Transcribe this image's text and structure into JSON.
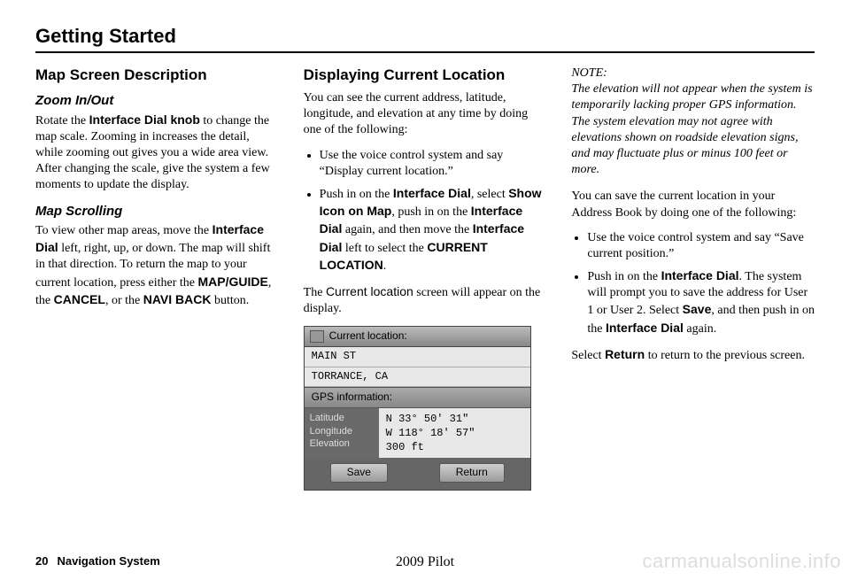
{
  "page": {
    "title": "Getting Started",
    "number": "20",
    "system": "Navigation System",
    "model": "2009  Pilot",
    "watermark": "carmanualsonline.info"
  },
  "col1": {
    "h2": "Map Screen Description",
    "zoom": {
      "h3": "Zoom In/Out",
      "p1a": "Rotate the ",
      "p1b": "Interface Dial knob",
      "p1c": " to change the map scale. Zooming in increases the detail, while zooming out gives you a wide area view. After changing the scale, give the system a few moments to update the display."
    },
    "scroll": {
      "h3": "Map Scrolling",
      "p1a": "To view other map areas, move the ",
      "p1b": "Interface Dial",
      "p1c": " left, right, up, or down. The map will shift in that direction. To return the map to your current location, press either the ",
      "p1d": "MAP/GUIDE",
      "p1e": ", the ",
      "p1f": "CANCEL",
      "p1g": ", or the ",
      "p1h": "NAVI BACK",
      "p1i": " button."
    }
  },
  "col2": {
    "h2": "Displaying Current Location",
    "p1": "You can see the current address, latitude, longitude, and elevation at any time by doing one of the following:",
    "li1": "Use the voice control system and say “Display current location.”",
    "li2a": "Push in on the ",
    "li2b": "Interface Dial",
    "li2c": ", select ",
    "li2d": "Show Icon on Map",
    "li2e": ", push in on the ",
    "li2f": "Interface Dial",
    "li2g": " again, and then move the ",
    "li2h": "Interface Dial",
    "li2i": " left to select the ",
    "li2j": "CURRENT LOCATION",
    "li2k": ".",
    "p2a": "The ",
    "p2b": "Current location",
    "p2c": " screen will appear on the display.",
    "gps": {
      "title": "Current location:",
      "line1": "MAIN ST",
      "line2": "TORRANCE, CA",
      "subtitle": "GPS information:",
      "labels": {
        "lat": "Latitude",
        "lon": "Longitude",
        "ele": "Elevation"
      },
      "values": {
        "lat": "N  33° 50' 31\"",
        "lon": "W 118° 18' 57\"",
        "ele": "300 ft"
      },
      "btnSave": "Save",
      "btnReturn": "Return"
    }
  },
  "col3": {
    "noteLabel": "NOTE:",
    "noteBody": "The elevation will not appear when the system is temporarily lacking proper GPS information. The system elevation may not agree with elevations shown on roadside elevation signs, and may fluctuate plus or minus 100 feet or more.",
    "p1": "You can save the current location in your Address Book by doing one of the following:",
    "li1": "Use the voice control system and say “Save current position.”",
    "li2a": "Push in on the ",
    "li2b": "Interface Dial",
    "li2c": ". The system will prompt you to save the address for User 1 or User 2. Select ",
    "li2d": "Save",
    "li2e": ", and then push in on the ",
    "li2f": "Interface Dial",
    "li2g": " again.",
    "p2a": "Select ",
    "p2b": "Return",
    "p2c": " to return to the previous screen."
  }
}
